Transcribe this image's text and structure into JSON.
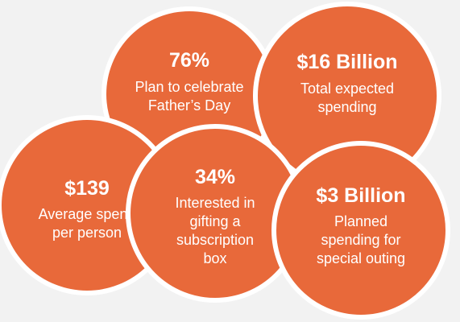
{
  "stats": [
    {
      "value": "76%",
      "line1": "Plan to celebrate",
      "line2": "Father’s Day"
    },
    {
      "value": "$16 Billion",
      "line1": "Total expected",
      "line2": "spending"
    },
    {
      "value": "$139",
      "line1": "Average spend",
      "line2": "per person"
    },
    {
      "value": "34%",
      "line1": "Interested in",
      "line2": "gifting a",
      "line3": "subscription",
      "line4": "box"
    },
    {
      "value": "$3 Billion",
      "line1": "Planned",
      "line2": "spending for",
      "line3": "special outing"
    }
  ],
  "colors": {
    "bubble": "#e8693a",
    "border": "#ffffff",
    "background": "#f2f2f2",
    "text": "#ffffff"
  }
}
